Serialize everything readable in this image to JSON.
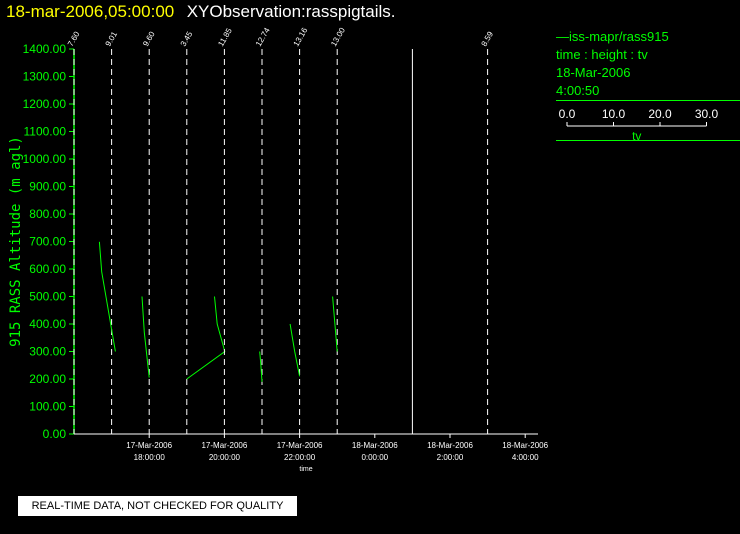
{
  "header": {
    "datetime": "18-mar-2006,05:00:00",
    "observation": "XYObservation:rasspigtails."
  },
  "legend": {
    "series": "iss-mapr/rass915",
    "axes": "time : height : tv",
    "date": "18-Mar-2006",
    "time": "4:00:50",
    "scale_ticks": [
      "0.0",
      "10.0",
      "20.0",
      "30.0"
    ],
    "scale_label": "tv"
  },
  "notice": "REAL-TIME DATA, NOT CHECKED FOR QUALITY",
  "colors": {
    "trace": "#00ff00",
    "title_date": "#ffff00",
    "axes": "#ffffff",
    "background": "#000000"
  },
  "chart_data": {
    "type": "line",
    "xlabel": "time",
    "ylabel": "915 RASS Altitude (m agl)",
    "ylim": [
      0,
      1400
    ],
    "y_ticks": [
      "0.00",
      "100.00",
      "200.00",
      "300.00",
      "400.00",
      "500.00",
      "600.00",
      "700.00",
      "800.00",
      "900.00",
      "1000.00",
      "1100.00",
      "1200.00",
      "1300.00",
      "1400.00"
    ],
    "x_ticks": [
      {
        "hour": 17.0,
        "date": "17-Mar-2006",
        "time": "18:00:00"
      },
      {
        "hour": 19.0,
        "date": "17-Mar-2006",
        "time": "20:00:00"
      },
      {
        "hour": 21.0,
        "date": "17-Mar-2006",
        "time": "22:00:00"
      },
      {
        "hour": 23.0,
        "date": "18-Mar-2006",
        "time": "0:00:00"
      },
      {
        "hour": 25.0,
        "date": "18-Mar-2006",
        "time": "2:00:00"
      },
      {
        "hour": 27.0,
        "date": "18-Mar-2006",
        "time": "4:00:00"
      }
    ],
    "profiles": [
      {
        "hour": 15.0,
        "label": "7.60",
        "points": []
      },
      {
        "hour": 16.0,
        "label": "9.01",
        "points": [
          [
            699,
            -3.2
          ],
          [
            590,
            -2.6
          ],
          [
            300,
            1.0
          ]
        ]
      },
      {
        "hour": 17.0,
        "label": "9.60",
        "points": [
          [
            500,
            -1.9
          ],
          [
            370,
            -1.3
          ],
          [
            205,
            0.0
          ]
        ]
      },
      {
        "hour": 18.0,
        "label": "3.45",
        "points": [
          [
            500,
            7.3
          ],
          [
            400,
            8.0
          ],
          [
            300,
            10.0
          ],
          [
            200,
            0.0
          ]
        ]
      },
      {
        "hour": 19.0,
        "label": "11.85",
        "points": []
      },
      {
        "hour": 20.0,
        "label": "12.74",
        "points": [
          [
            300,
            -0.6
          ],
          [
            250,
            -0.3
          ],
          [
            190,
            0.0
          ]
        ]
      },
      {
        "hour": 21.0,
        "label": "13.16",
        "points": [
          [
            400,
            -2.5
          ],
          [
            300,
            -1.3
          ],
          [
            210,
            0.0
          ]
        ]
      },
      {
        "hour": 22.0,
        "label": "13.00",
        "points": [
          [
            500,
            -1.2
          ],
          [
            400,
            -0.6
          ],
          [
            300,
            0.0
          ]
        ]
      },
      {
        "hour": 24.0,
        "label": "",
        "points": []
      },
      {
        "hour": 26.0,
        "label": "8.59",
        "points": []
      }
    ]
  }
}
